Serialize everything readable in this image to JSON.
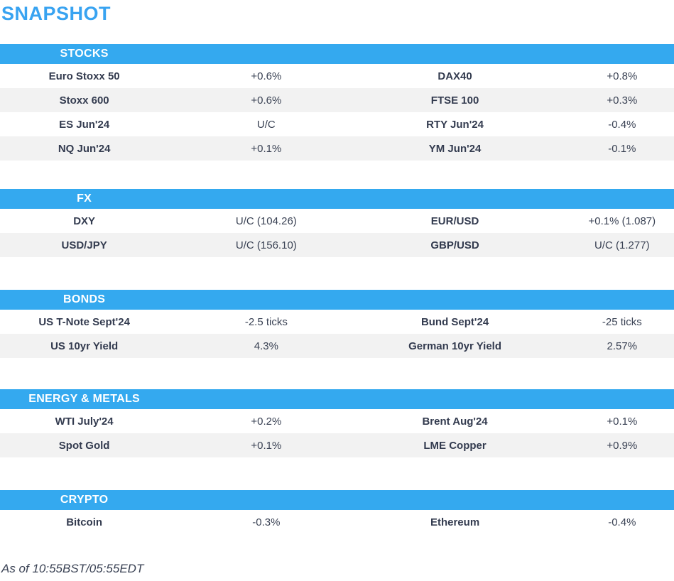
{
  "page": {
    "title": "SNAPSHOT",
    "footer": "As of 10:55BST/05:55EDT"
  },
  "colors": {
    "title_blue": "#38a3f1",
    "section_bar_blue": "#34a9ef",
    "row_stripe_gray": "#f2f2f2",
    "label_text": "#333b4f",
    "value_text": "#3a4254"
  },
  "sections": [
    {
      "header": "STOCKS",
      "rows": [
        {
          "label1": "Euro Stoxx 50",
          "value1": "+0.6%",
          "label2": "DAX40",
          "value2": "+0.8%"
        },
        {
          "label1": "Stoxx 600",
          "value1": "+0.6%",
          "label2": "FTSE 100",
          "value2": "+0.3%"
        },
        {
          "label1": "ES Jun'24",
          "value1": "U/C",
          "label2": "RTY Jun'24",
          "value2": "-0.4%"
        },
        {
          "label1": "NQ Jun'24",
          "value1": "+0.1%",
          "label2": "YM Jun'24",
          "value2": "-0.1%"
        }
      ]
    },
    {
      "header": "FX",
      "rows": [
        {
          "label1": "DXY",
          "value1": "U/C (104.26)",
          "label2": "EUR/USD",
          "value2": "+0.1% (1.087)"
        },
        {
          "label1": "USD/JPY",
          "value1": "U/C (156.10)",
          "label2": "GBP/USD",
          "value2": "U/C (1.277)"
        }
      ]
    },
    {
      "header": "BONDS",
      "rows": [
        {
          "label1": "US T-Note Sept'24",
          "value1": "-2.5 ticks",
          "label2": "Bund Sept'24",
          "value2": "-25 ticks"
        },
        {
          "label1": "US 10yr Yield",
          "value1": "4.3%",
          "label2": "German 10yr Yield",
          "value2": "2.57%"
        }
      ]
    },
    {
      "header": "ENERGY & METALS",
      "rows": [
        {
          "label1": "WTI July'24",
          "value1": "+0.2%",
          "label2": "Brent Aug'24",
          "value2": "+0.1%"
        },
        {
          "label1": "Spot Gold",
          "value1": "+0.1%",
          "label2": "LME Copper",
          "value2": "+0.9%"
        }
      ]
    },
    {
      "header": "CRYPTO",
      "rows": [
        {
          "label1": "Bitcoin",
          "value1": "-0.3%",
          "label2": "Ethereum",
          "value2": "-0.4%"
        }
      ]
    }
  ]
}
